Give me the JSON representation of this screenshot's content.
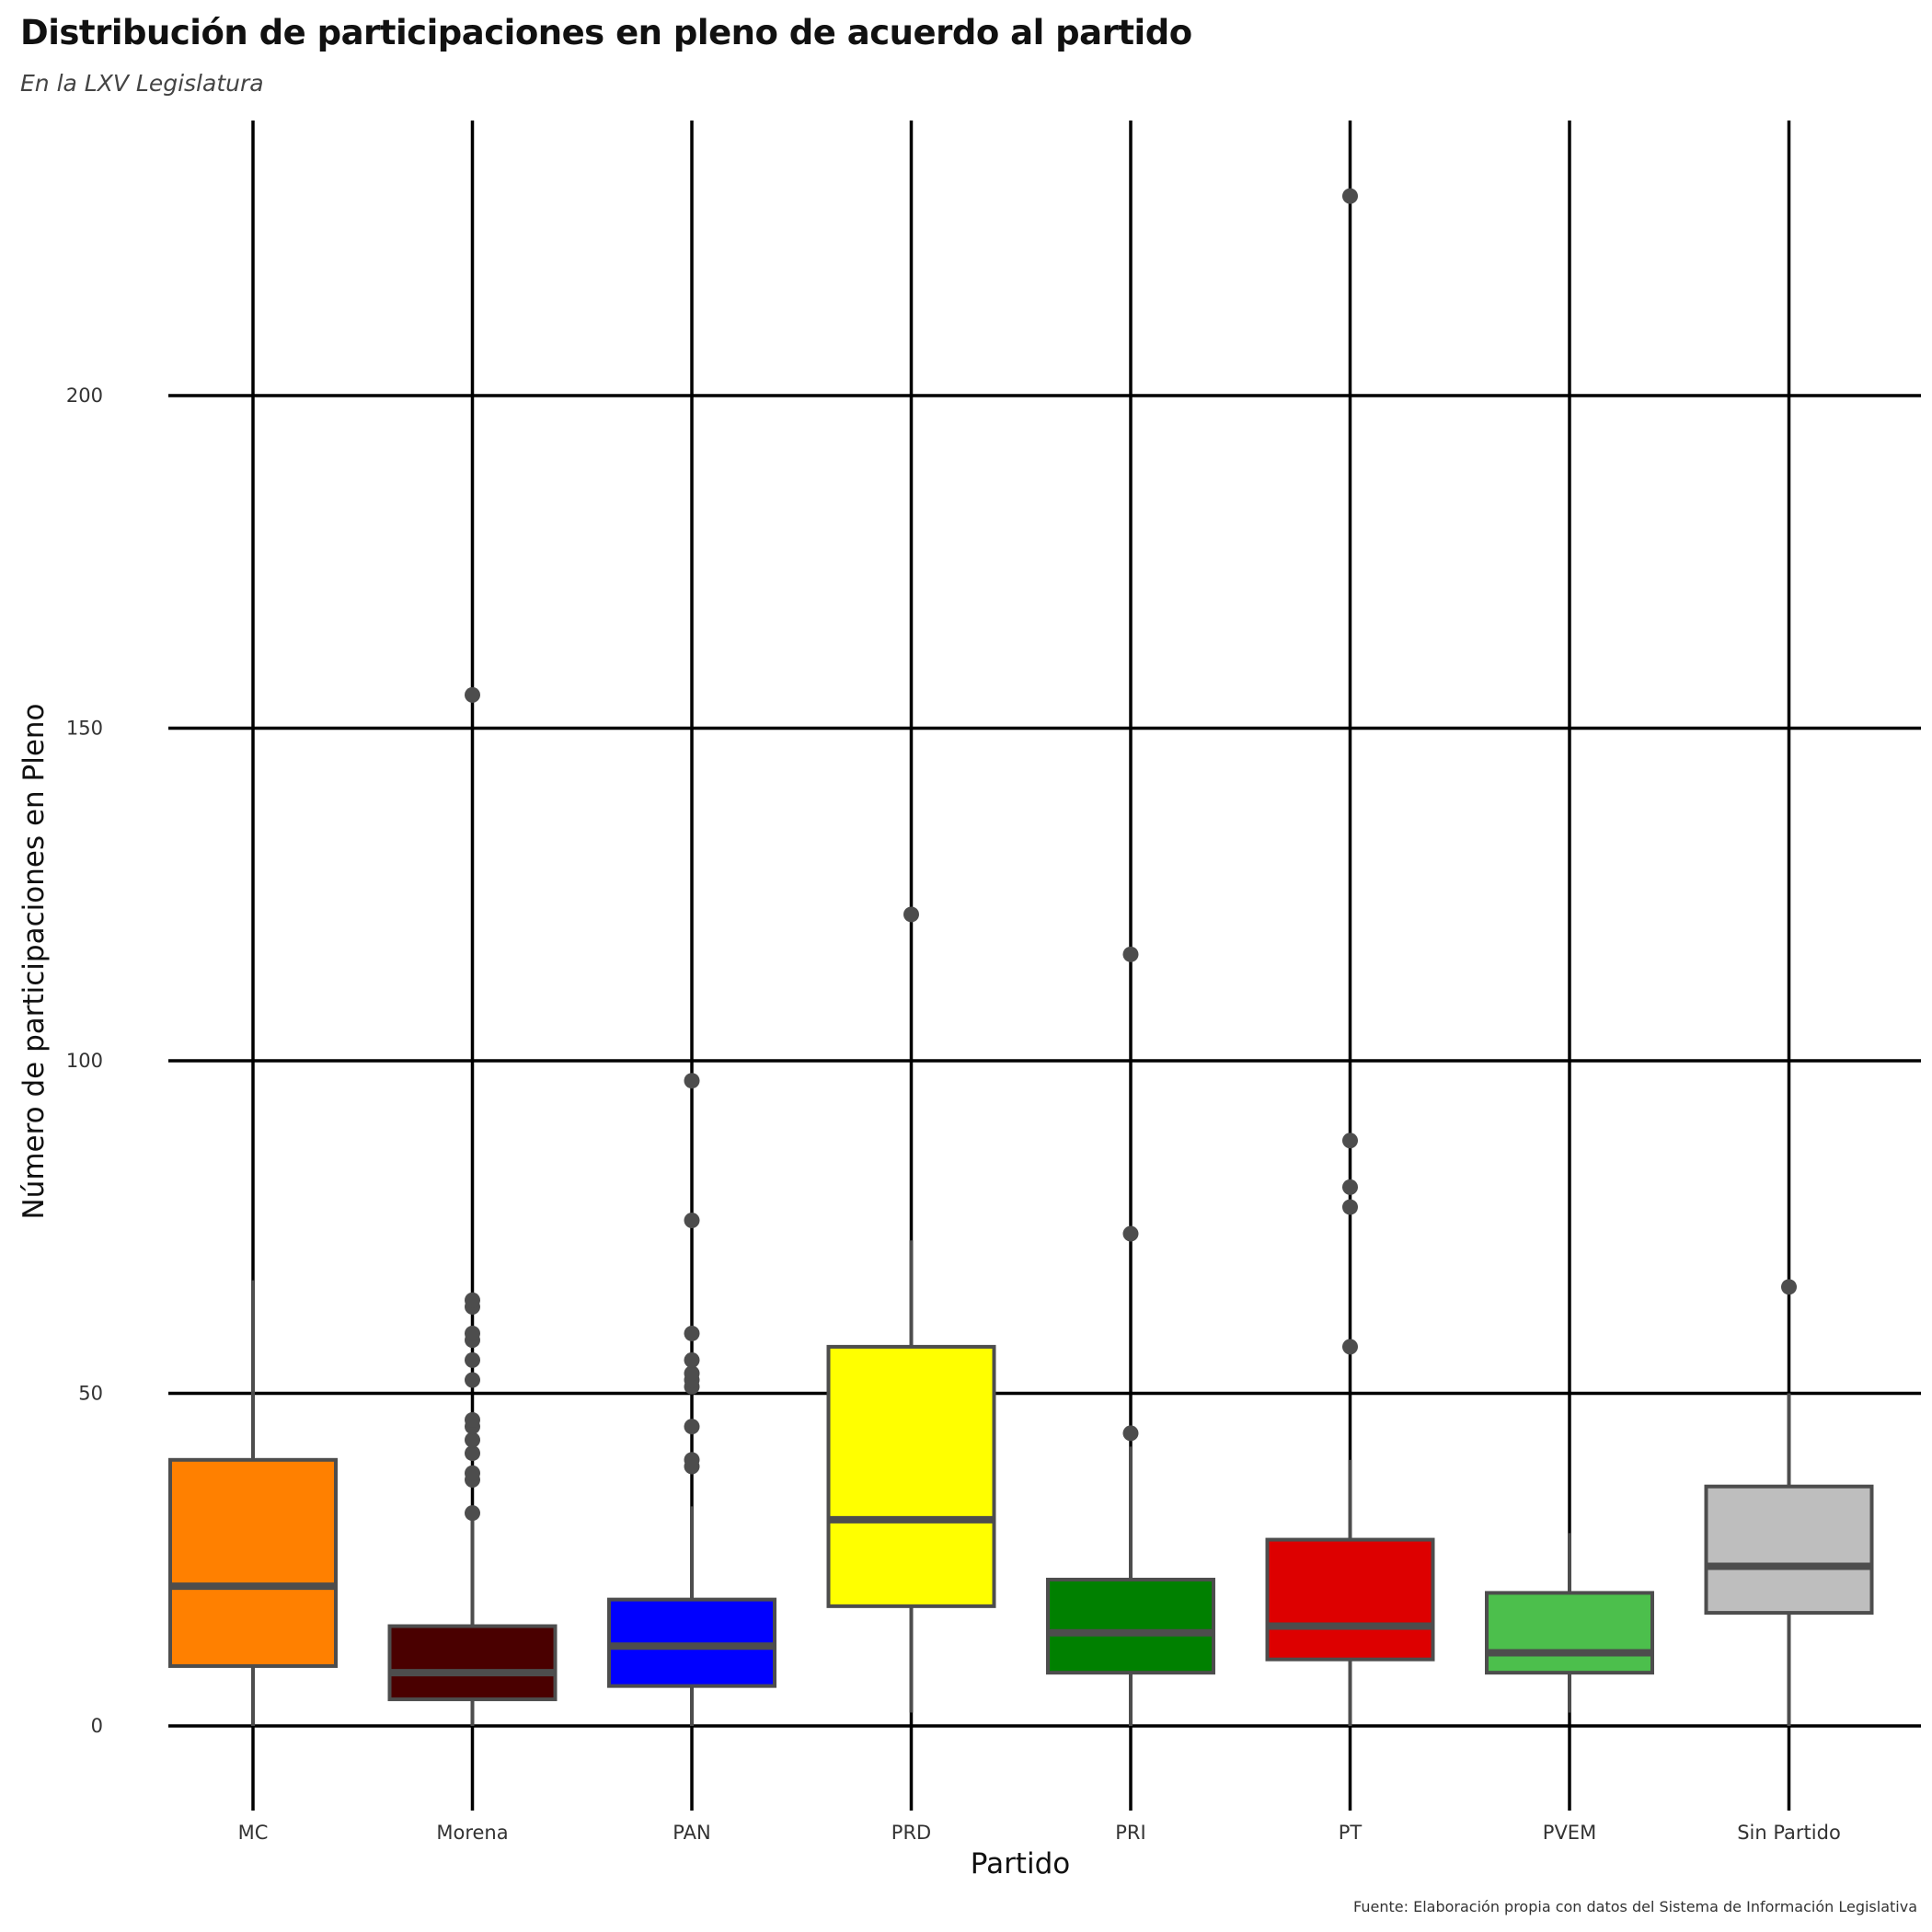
{
  "title": "Distribución de participaciones en pleno de acuerdo al partido",
  "subtitle": "En la LXV Legislatura",
  "caption": "Fuente: Elaboración propia con datos del Sistema de Información Legislativa",
  "chart_data": {
    "type": "boxplot",
    "title": "Distribución de participaciones en pleno de acuerdo al partido",
    "subtitle": "En la LXV Legislatura",
    "xlabel": "Partido",
    "ylabel": "Número de participaciones en Pleno",
    "ylim": [
      -12.5,
      242
    ],
    "yticks": [
      0,
      50,
      100,
      150,
      200
    ],
    "grid": true,
    "categories": [
      "MC",
      "Morena",
      "PAN",
      "PRD",
      "PRI",
      "PT",
      "PVEM",
      "Sin Partido"
    ],
    "boxes": [
      {
        "name": "MC",
        "color": "#FF8000",
        "whisker_low": 0,
        "q1": 9,
        "median": 21,
        "q3": 40,
        "whisker_high": 67,
        "outliers": []
      },
      {
        "name": "Morena",
        "color": "#4A0000",
        "whisker_low": 0,
        "q1": 4,
        "median": 8,
        "q3": 15,
        "whisker_high": 31,
        "outliers": [
          32,
          37,
          38,
          41,
          43,
          45,
          46,
          52,
          55,
          58,
          59,
          63,
          64,
          155
        ]
      },
      {
        "name": "PAN",
        "color": "#0000FF",
        "whisker_low": 0,
        "q1": 6,
        "median": 12,
        "q3": 19,
        "whisker_high": 33,
        "outliers": [
          39,
          40,
          45,
          51,
          52,
          53,
          55,
          59,
          76,
          97
        ]
      },
      {
        "name": "PRD",
        "color": "#FFFF00",
        "whisker_low": 2,
        "q1": 18,
        "median": 31,
        "q3": 57,
        "whisker_high": 73,
        "outliers": [
          122
        ]
      },
      {
        "name": "PRI",
        "color": "#008000",
        "whisker_low": 0,
        "q1": 8,
        "median": 14,
        "q3": 22,
        "whisker_high": 42,
        "outliers": [
          44,
          74,
          116
        ]
      },
      {
        "name": "PT",
        "color": "#DD0000",
        "whisker_low": 0,
        "q1": 10,
        "median": 15,
        "q3": 28,
        "whisker_high": 40,
        "outliers": [
          57,
          78,
          81,
          88,
          230
        ]
      },
      {
        "name": "PVEM",
        "color": "#4CBF4C",
        "whisker_low": 2,
        "q1": 8,
        "median": 11,
        "q3": 20,
        "whisker_high": 29,
        "outliers": []
      },
      {
        "name": "Sin Partido",
        "color": "#BEBEBE",
        "whisker_low": 0,
        "q1": 17,
        "median": 24,
        "q3": 36,
        "whisker_high": 50,
        "outliers": [
          66
        ]
      }
    ]
  }
}
